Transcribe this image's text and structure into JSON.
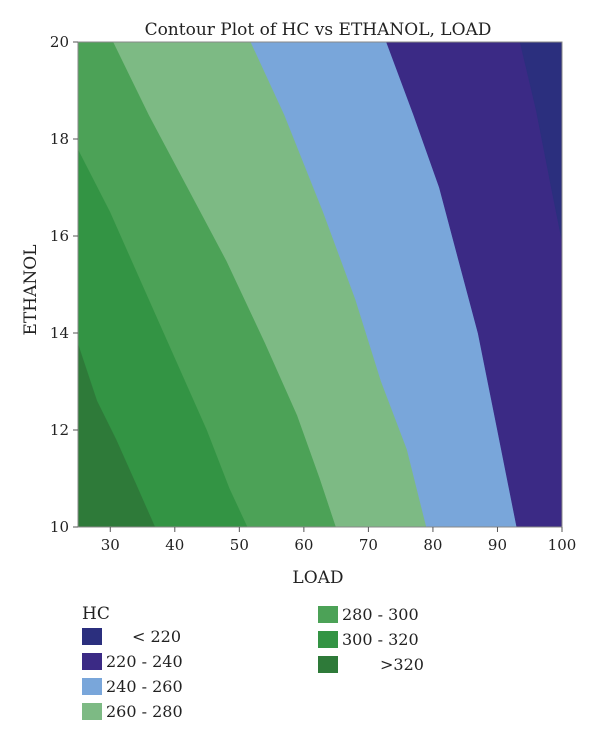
{
  "chart_data": {
    "type": "contour",
    "title": "Contour Plot of HC vs ETHANOL, LOAD",
    "xlabel": "LOAD",
    "ylabel": "ETHANOL",
    "xlim": [
      25,
      100
    ],
    "ylim": [
      10,
      20
    ],
    "xticks": [
      30,
      40,
      50,
      60,
      70,
      80,
      90,
      100
    ],
    "yticks": [
      10,
      12,
      14,
      16,
      18,
      20
    ],
    "grid": false,
    "legend_title": "HC",
    "legend_position": "bottom",
    "levels": [
      {
        "label": "< 220",
        "color": "#2b2f7e"
      },
      {
        "label": "220 - 240",
        "color": "#3b2a85"
      },
      {
        "label": "240 - 260",
        "color": "#79a6da"
      },
      {
        "label": "260 - 280",
        "color": "#7dba84"
      },
      {
        "label": "280 - 300",
        "color": "#4ca257"
      },
      {
        "label": "300 - 320",
        "color": "#339444"
      },
      {
        "label": ">320",
        "color": "#2e7a39"
      }
    ],
    "boundaries": [
      {
        "between": [
          ">320",
          "300 - 320"
        ],
        "points": [
          [
            25.0,
            13.8
          ],
          [
            28.0,
            12.6
          ],
          [
            31.0,
            11.8
          ],
          [
            34.0,
            10.9
          ],
          [
            37.0,
            10.0
          ]
        ]
      },
      {
        "between": [
          "300 - 320",
          "280 - 300"
        ],
        "points": [
          [
            25.0,
            17.8
          ],
          [
            30.0,
            16.5
          ],
          [
            35.0,
            15.0
          ],
          [
            40.0,
            13.5
          ],
          [
            45.0,
            12.0
          ],
          [
            48.5,
            10.8
          ],
          [
            51.3,
            10.0
          ]
        ]
      },
      {
        "between": [
          "280 - 300",
          "260 - 280"
        ],
        "points": [
          [
            30.5,
            20.0
          ],
          [
            36.0,
            18.5
          ],
          [
            42.0,
            17.0
          ],
          [
            48.0,
            15.5
          ],
          [
            54.0,
            13.8
          ],
          [
            59.0,
            12.3
          ],
          [
            62.5,
            11.0
          ],
          [
            65.0,
            10.0
          ]
        ]
      },
      {
        "between": [
          "260 - 280",
          "240 - 260"
        ],
        "points": [
          [
            51.8,
            20.0
          ],
          [
            57.0,
            18.5
          ],
          [
            63.0,
            16.5
          ],
          [
            68.0,
            14.7
          ],
          [
            72.0,
            13.0
          ],
          [
            76.0,
            11.6
          ],
          [
            79.0,
            10.0
          ]
        ]
      },
      {
        "between": [
          "240 - 260",
          "220 - 240"
        ],
        "points": [
          [
            72.8,
            20.0
          ],
          [
            77.0,
            18.5
          ],
          [
            81.0,
            17.0
          ],
          [
            84.0,
            15.5
          ],
          [
            87.0,
            14.0
          ],
          [
            90.0,
            12.0
          ],
          [
            93.0,
            10.0
          ]
        ]
      },
      {
        "between": [
          "220 - 240",
          "< 220"
        ],
        "points": [
          [
            93.5,
            20.0
          ],
          [
            96.0,
            18.6
          ],
          [
            98.5,
            16.9
          ],
          [
            100.0,
            15.9
          ]
        ]
      }
    ]
  }
}
